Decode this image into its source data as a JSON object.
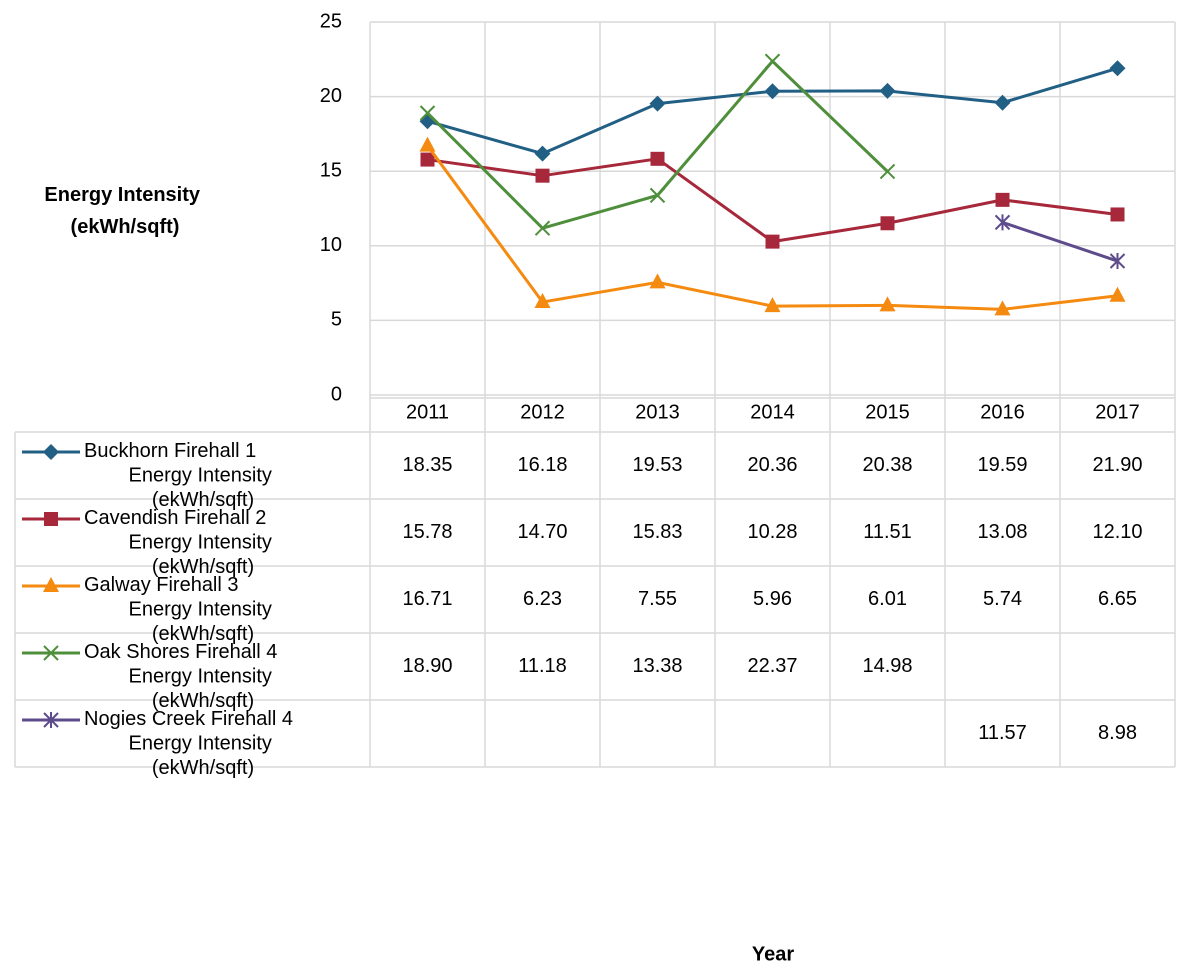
{
  "chart_data": {
    "type": "line",
    "y_axis_label": "Energy Intensity (ekWh/sqft)",
    "x_axis_label": "Year",
    "categories": [
      "2011",
      "2012",
      "2013",
      "2014",
      "2015",
      "2016",
      "2017"
    ],
    "ylim": [
      0,
      25
    ],
    "yticks": [
      0,
      5,
      10,
      15,
      20,
      25
    ],
    "grid": true,
    "data_table": true,
    "series": [
      {
        "name": "Buckhorn Firehall 1 Energy Intensity (ekWh/sqft)",
        "color": "#215f85",
        "marker": "diamond",
        "values": [
          18.35,
          16.18,
          19.53,
          20.36,
          20.38,
          19.59,
          21.9
        ],
        "value_labels": [
          "18.35",
          "16.18",
          "19.53",
          "20.36",
          "20.38",
          "19.59",
          "21.90"
        ]
      },
      {
        "name": "Cavendish Firehall 2 Energy Intensity (ekWh/sqft)",
        "color": "#a6283a",
        "marker": "square",
        "values": [
          15.78,
          14.7,
          15.83,
          10.28,
          11.51,
          13.08,
          12.1
        ],
        "value_labels": [
          "15.78",
          "14.70",
          "15.83",
          "10.28",
          "11.51",
          "13.08",
          "12.10"
        ]
      },
      {
        "name": "Galway Firehall 3 Energy Intensity (ekWh/sqft)",
        "color": "#f58a10",
        "marker": "triangle",
        "values": [
          16.71,
          6.23,
          7.55,
          5.96,
          6.01,
          5.74,
          6.65
        ],
        "value_labels": [
          "16.71",
          "6.23",
          "7.55",
          "5.96",
          "6.01",
          "5.74",
          "6.65"
        ]
      },
      {
        "name": "Oak Shores Firehall 4 Energy Intensity (ekWh/sqft)",
        "color": "#4f8f3c",
        "marker": "x",
        "values": [
          18.9,
          11.18,
          13.38,
          22.37,
          14.98,
          null,
          null
        ],
        "value_labels": [
          "18.90",
          "11.18",
          "13.38",
          "22.37",
          "14.98",
          null,
          null
        ]
      },
      {
        "name": "Nogies Creek Firehall 4 Energy Intensity (ekWh/sqft)",
        "color": "#5e4b8c",
        "marker": "star",
        "values": [
          null,
          null,
          null,
          null,
          null,
          11.57,
          8.98
        ],
        "value_labels": [
          null,
          null,
          null,
          null,
          null,
          "11.57",
          "8.98"
        ]
      }
    ]
  }
}
